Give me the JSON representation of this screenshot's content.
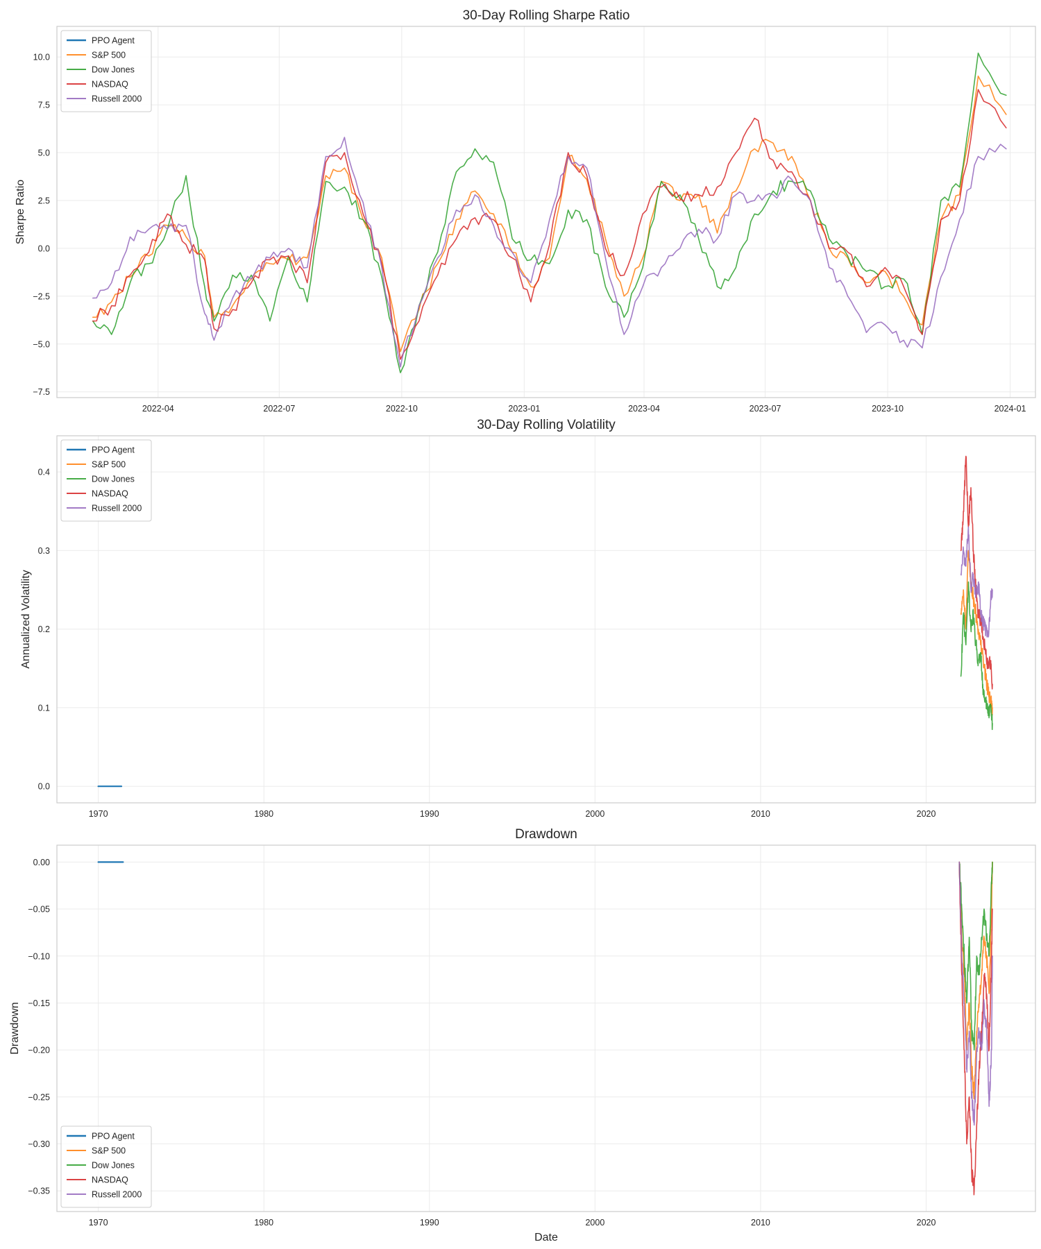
{
  "series_styles": [
    {
      "name": "PPO Agent",
      "color": "#1f77b4"
    },
    {
      "name": "S&P 500",
      "color": "#ff7f0e"
    },
    {
      "name": "Dow Jones",
      "color": "#2ca02c"
    },
    {
      "name": "NASDAQ",
      "color": "#d62728"
    },
    {
      "name": "Russell 2000",
      "color": "#9467bd"
    }
  ],
  "chart_data": [
    {
      "type": "line",
      "title": "30-Day Rolling Sharpe Ratio",
      "xlabel": "",
      "ylabel": "Sharpe Ratio",
      "x_type": "date",
      "xlim": [
        "2022-01-15",
        "2024-01-20"
      ],
      "ylim": [
        -7.8,
        11.6
      ],
      "x_ticks": [
        "2022-04",
        "2022-07",
        "2022-10",
        "2023-01",
        "2023-04",
        "2023-07",
        "2023-10",
        "2024-01"
      ],
      "y_ticks": [
        -7.5,
        -5.0,
        -2.5,
        0.0,
        2.5,
        5.0,
        7.5,
        10.0
      ],
      "y_tick_labels": [
        "−7.5",
        "−5.0",
        "−2.5",
        "0.0",
        "2.5",
        "5.0",
        "7.5",
        "10.0"
      ],
      "grid": true,
      "legend": "upper left",
      "series": [
        {
          "name": "PPO Agent",
          "x": [],
          "y": []
        },
        {
          "name": "S&P 500",
          "x": [
            "2022-02-11",
            "2022-02-25",
            "2022-03-11",
            "2022-03-25",
            "2022-04-08",
            "2022-04-22",
            "2022-05-06",
            "2022-05-13",
            "2022-05-27",
            "2022-06-10",
            "2022-06-24",
            "2022-07-08",
            "2022-07-22",
            "2022-08-05",
            "2022-08-19",
            "2022-09-02",
            "2022-09-16",
            "2022-09-30",
            "2022-10-14",
            "2022-10-28",
            "2022-11-11",
            "2022-11-25",
            "2022-12-09",
            "2022-12-23",
            "2023-01-06",
            "2023-01-20",
            "2023-02-03",
            "2023-02-17",
            "2023-03-03",
            "2023-03-17",
            "2023-03-31",
            "2023-04-14",
            "2023-04-28",
            "2023-05-12",
            "2023-05-26",
            "2023-06-09",
            "2023-06-23",
            "2023-07-07",
            "2023-07-21",
            "2023-08-04",
            "2023-08-18",
            "2023-09-01",
            "2023-09-15",
            "2023-09-29",
            "2023-10-13",
            "2023-10-27",
            "2023-11-10",
            "2023-11-24",
            "2023-12-08",
            "2023-12-29"
          ],
          "y": [
            -3.6,
            -2.8,
            -1.5,
            -0.4,
            1.2,
            0.6,
            -0.4,
            -3.6,
            -3.0,
            -1.6,
            -0.8,
            -0.6,
            -0.5,
            3.8,
            4.2,
            1.5,
            -0.5,
            -5.4,
            -3.2,
            -0.8,
            1.5,
            3.0,
            1.8,
            -0.2,
            -2.0,
            -0.5,
            4.8,
            3.6,
            0.5,
            -2.5,
            -0.5,
            3.5,
            2.5,
            2.8,
            0.8,
            3.0,
            5.2,
            5.5,
            4.8,
            2.5,
            0.0,
            -0.5,
            -1.8,
            -1.2,
            -2.5,
            -4.0,
            1.5,
            2.8,
            9.0,
            7.0
          ]
        },
        {
          "name": "Dow Jones",
          "x": [
            "2022-02-11",
            "2022-02-25",
            "2022-03-11",
            "2022-03-25",
            "2022-04-08",
            "2022-04-22",
            "2022-05-06",
            "2022-05-13",
            "2022-05-27",
            "2022-06-10",
            "2022-06-24",
            "2022-07-08",
            "2022-07-22",
            "2022-08-05",
            "2022-08-19",
            "2022-09-02",
            "2022-09-16",
            "2022-09-30",
            "2022-10-14",
            "2022-10-28",
            "2022-11-11",
            "2022-11-25",
            "2022-12-09",
            "2022-12-23",
            "2023-01-06",
            "2023-01-20",
            "2023-02-03",
            "2023-02-17",
            "2023-03-03",
            "2023-03-17",
            "2023-03-31",
            "2023-04-14",
            "2023-04-28",
            "2023-05-12",
            "2023-05-26",
            "2023-06-09",
            "2023-06-23",
            "2023-07-07",
            "2023-07-21",
            "2023-08-04",
            "2023-08-18",
            "2023-09-01",
            "2023-09-15",
            "2023-09-29",
            "2023-10-13",
            "2023-10-27",
            "2023-11-10",
            "2023-11-24",
            "2023-12-08",
            "2023-12-29"
          ],
          "y": [
            -3.8,
            -4.5,
            -1.8,
            -0.8,
            1.0,
            3.8,
            -2.0,
            -3.8,
            -1.4,
            -1.4,
            -3.8,
            -0.4,
            -2.8,
            3.5,
            3.2,
            1.5,
            -1.5,
            -6.5,
            -3.0,
            -0.2,
            4.0,
            5.2,
            4.5,
            0.5,
            -0.6,
            -0.8,
            2.0,
            1.5,
            -2.0,
            -3.6,
            -1.0,
            3.5,
            2.8,
            0.5,
            -2.0,
            -1.0,
            1.8,
            3.0,
            3.5,
            3.0,
            0.5,
            -0.4,
            -1.2,
            -2.0,
            -1.6,
            -4.5,
            2.5,
            3.2,
            10.2,
            8.0
          ]
        },
        {
          "name": "NASDAQ",
          "x": [
            "2022-02-11",
            "2022-02-25",
            "2022-03-11",
            "2022-03-25",
            "2022-04-08",
            "2022-04-22",
            "2022-05-06",
            "2022-05-13",
            "2022-05-27",
            "2022-06-10",
            "2022-06-24",
            "2022-07-08",
            "2022-07-22",
            "2022-08-05",
            "2022-08-19",
            "2022-09-02",
            "2022-09-16",
            "2022-09-30",
            "2022-10-14",
            "2022-10-28",
            "2022-11-11",
            "2022-11-25",
            "2022-12-09",
            "2022-12-23",
            "2023-01-06",
            "2023-01-20",
            "2023-02-03",
            "2023-02-17",
            "2023-03-03",
            "2023-03-17",
            "2023-03-31",
            "2023-04-14",
            "2023-04-28",
            "2023-05-12",
            "2023-05-26",
            "2023-06-09",
            "2023-06-23",
            "2023-07-07",
            "2023-07-21",
            "2023-08-04",
            "2023-08-18",
            "2023-09-01",
            "2023-09-15",
            "2023-09-29",
            "2023-10-13",
            "2023-10-27",
            "2023-11-10",
            "2023-11-24",
            "2023-12-08",
            "2023-12-29"
          ],
          "y": [
            -3.8,
            -3.0,
            -1.4,
            -0.2,
            1.8,
            0.2,
            -0.6,
            -4.2,
            -3.2,
            -1.8,
            -0.6,
            -0.4,
            -1.8,
            4.5,
            5.0,
            1.8,
            -0.8,
            -5.8,
            -3.8,
            -1.4,
            0.5,
            1.6,
            1.5,
            -0.5,
            -2.8,
            0.2,
            5.0,
            3.8,
            0.0,
            -1.4,
            1.8,
            3.2,
            2.6,
            2.8,
            3.2,
            5.0,
            6.8,
            4.6,
            4.0,
            2.5,
            0.0,
            -0.2,
            -2.0,
            -1.0,
            -2.0,
            -4.5,
            1.5,
            2.5,
            8.3,
            6.3
          ]
        },
        {
          "name": "Russell 2000",
          "x": [
            "2022-02-11",
            "2022-02-25",
            "2022-03-11",
            "2022-03-25",
            "2022-04-08",
            "2022-04-22",
            "2022-05-06",
            "2022-05-13",
            "2022-05-27",
            "2022-06-10",
            "2022-06-24",
            "2022-07-08",
            "2022-07-22",
            "2022-08-05",
            "2022-08-19",
            "2022-09-02",
            "2022-09-16",
            "2022-09-30",
            "2022-10-14",
            "2022-10-28",
            "2022-11-11",
            "2022-11-25",
            "2022-12-09",
            "2022-12-23",
            "2023-01-06",
            "2023-01-20",
            "2023-02-03",
            "2023-02-17",
            "2023-03-03",
            "2023-03-17",
            "2023-03-31",
            "2023-04-14",
            "2023-04-28",
            "2023-05-12",
            "2023-05-26",
            "2023-06-09",
            "2023-06-23",
            "2023-07-07",
            "2023-07-21",
            "2023-08-04",
            "2023-08-18",
            "2023-09-01",
            "2023-09-15",
            "2023-09-29",
            "2023-10-13",
            "2023-10-27",
            "2023-11-10",
            "2023-11-24",
            "2023-12-08",
            "2023-12-29"
          ],
          "y": [
            -2.6,
            -1.8,
            0.6,
            1.0,
            1.0,
            1.2,
            -3.4,
            -4.8,
            -2.6,
            -1.6,
            -0.5,
            0.0,
            -1.0,
            4.8,
            5.8,
            2.4,
            -1.0,
            -6.2,
            -3.0,
            -0.5,
            2.0,
            2.8,
            1.2,
            -0.2,
            -1.8,
            1.5,
            4.8,
            4.2,
            -0.5,
            -4.5,
            -2.0,
            -1.0,
            0.0,
            1.0,
            0.5,
            2.8,
            2.5,
            2.8,
            3.6,
            2.5,
            -1.0,
            -2.5,
            -4.4,
            -4.0,
            -4.8,
            -5.2,
            -1.5,
            1.5,
            4.8,
            5.2
          ]
        }
      ]
    },
    {
      "type": "line",
      "title": "30-Day Rolling Volatility",
      "xlabel": "",
      "ylabel": "Annualized Volatility",
      "x_type": "year",
      "xlim": [
        1967.5,
        2026.6
      ],
      "ylim": [
        -0.021,
        0.446
      ],
      "x_ticks": [
        1970,
        1980,
        1990,
        2000,
        2010,
        2020
      ],
      "y_ticks": [
        0.0,
        0.1,
        0.2,
        0.3,
        0.4
      ],
      "y_tick_labels": [
        "0.0",
        "0.1",
        "0.2",
        "0.3",
        "0.4"
      ],
      "grid": true,
      "legend": "upper left",
      "series": [
        {
          "name": "PPO Agent",
          "x": [
            1970.0,
            1971.4
          ],
          "y": [
            0.0,
            0.0
          ]
        },
        {
          "name": "S&P 500",
          "x": [
            2022.1,
            2022.25,
            2022.4,
            2022.55,
            2022.7,
            2022.85,
            2023.0,
            2023.15,
            2023.3,
            2023.45,
            2023.6,
            2023.75,
            2023.9,
            2024.0
          ],
          "y": [
            0.22,
            0.25,
            0.2,
            0.3,
            0.26,
            0.24,
            0.22,
            0.2,
            0.18,
            0.16,
            0.14,
            0.12,
            0.11,
            0.1
          ]
        },
        {
          "name": "Dow Jones",
          "x": [
            2022.1,
            2022.25,
            2022.4,
            2022.55,
            2022.7,
            2022.85,
            2023.0,
            2023.15,
            2023.3,
            2023.45,
            2023.6,
            2023.75,
            2023.9,
            2024.0
          ],
          "y": [
            0.14,
            0.22,
            0.18,
            0.26,
            0.2,
            0.22,
            0.18,
            0.16,
            0.17,
            0.12,
            0.11,
            0.09,
            0.1,
            0.08
          ]
        },
        {
          "name": "NASDAQ",
          "x": [
            2022.1,
            2022.25,
            2022.4,
            2022.55,
            2022.7,
            2022.85,
            2023.0,
            2023.15,
            2023.3,
            2023.45,
            2023.6,
            2023.75,
            2023.9,
            2024.0
          ],
          "y": [
            0.3,
            0.35,
            0.42,
            0.33,
            0.38,
            0.3,
            0.25,
            0.22,
            0.21,
            0.19,
            0.17,
            0.15,
            0.16,
            0.13
          ]
        },
        {
          "name": "Russell 2000",
          "x": [
            2022.1,
            2022.25,
            2022.4,
            2022.55,
            2022.7,
            2022.85,
            2023.0,
            2023.15,
            2023.3,
            2023.45,
            2023.6,
            2023.75,
            2023.9,
            2024.0
          ],
          "y": [
            0.27,
            0.3,
            0.28,
            0.33,
            0.25,
            0.27,
            0.24,
            0.26,
            0.22,
            0.21,
            0.2,
            0.19,
            0.24,
            0.25
          ]
        }
      ]
    },
    {
      "type": "line",
      "title": "Drawdown",
      "xlabel": "Date",
      "ylabel": "Drawdown",
      "x_type": "year",
      "xlim": [
        1967.5,
        2026.6
      ],
      "ylim": [
        -0.372,
        0.018
      ],
      "x_ticks": [
        1970,
        1980,
        1990,
        2000,
        2010,
        2020
      ],
      "y_ticks": [
        0.0,
        -0.05,
        -0.1,
        -0.15,
        -0.2,
        -0.25,
        -0.3,
        -0.35
      ],
      "y_tick_labels": [
        "0.00",
        "−0.05",
        "−0.10",
        "−0.15",
        "−0.20",
        "−0.25",
        "−0.30",
        "−0.35"
      ],
      "grid": true,
      "legend": "lower left",
      "series": [
        {
          "name": "PPO Agent",
          "x": [
            1970.0,
            1971.5
          ],
          "y": [
            0.0,
            0.0
          ]
        },
        {
          "name": "S&P 500",
          "x": [
            2022.0,
            2022.15,
            2022.3,
            2022.45,
            2022.6,
            2022.75,
            2022.9,
            2023.05,
            2023.2,
            2023.35,
            2023.5,
            2023.65,
            2023.8,
            2023.95,
            2024.0
          ],
          "y": [
            0.0,
            -0.08,
            -0.12,
            -0.2,
            -0.15,
            -0.22,
            -0.25,
            -0.18,
            -0.15,
            -0.12,
            -0.08,
            -0.1,
            -0.14,
            -0.05,
            0.0
          ]
        },
        {
          "name": "Dow Jones",
          "x": [
            2022.0,
            2022.15,
            2022.3,
            2022.45,
            2022.6,
            2022.75,
            2022.9,
            2023.05,
            2023.2,
            2023.35,
            2023.5,
            2023.65,
            2023.8,
            2023.95,
            2024.0
          ],
          "y": [
            0.0,
            -0.05,
            -0.1,
            -0.15,
            -0.08,
            -0.18,
            -0.2,
            -0.1,
            -0.12,
            -0.08,
            -0.05,
            -0.08,
            -0.1,
            -0.02,
            0.0
          ]
        },
        {
          "name": "NASDAQ",
          "x": [
            2022.0,
            2022.15,
            2022.3,
            2022.45,
            2022.6,
            2022.75,
            2022.9,
            2023.05,
            2023.2,
            2023.35,
            2023.5,
            2023.65,
            2023.8,
            2023.95,
            2024.0
          ],
          "y": [
            0.0,
            -0.12,
            -0.2,
            -0.3,
            -0.25,
            -0.33,
            -0.35,
            -0.28,
            -0.22,
            -0.18,
            -0.12,
            -0.14,
            -0.2,
            -0.1,
            -0.05
          ]
        },
        {
          "name": "Russell 2000",
          "x": [
            2022.0,
            2022.15,
            2022.3,
            2022.45,
            2022.6,
            2022.75,
            2022.9,
            2023.05,
            2023.2,
            2023.35,
            2023.5,
            2023.65,
            2023.8,
            2023.95,
            2024.0
          ],
          "y": [
            0.0,
            -0.1,
            -0.15,
            -0.22,
            -0.18,
            -0.25,
            -0.28,
            -0.2,
            -0.18,
            -0.2,
            -0.15,
            -0.18,
            -0.26,
            -0.2,
            -0.1
          ]
        }
      ]
    }
  ]
}
